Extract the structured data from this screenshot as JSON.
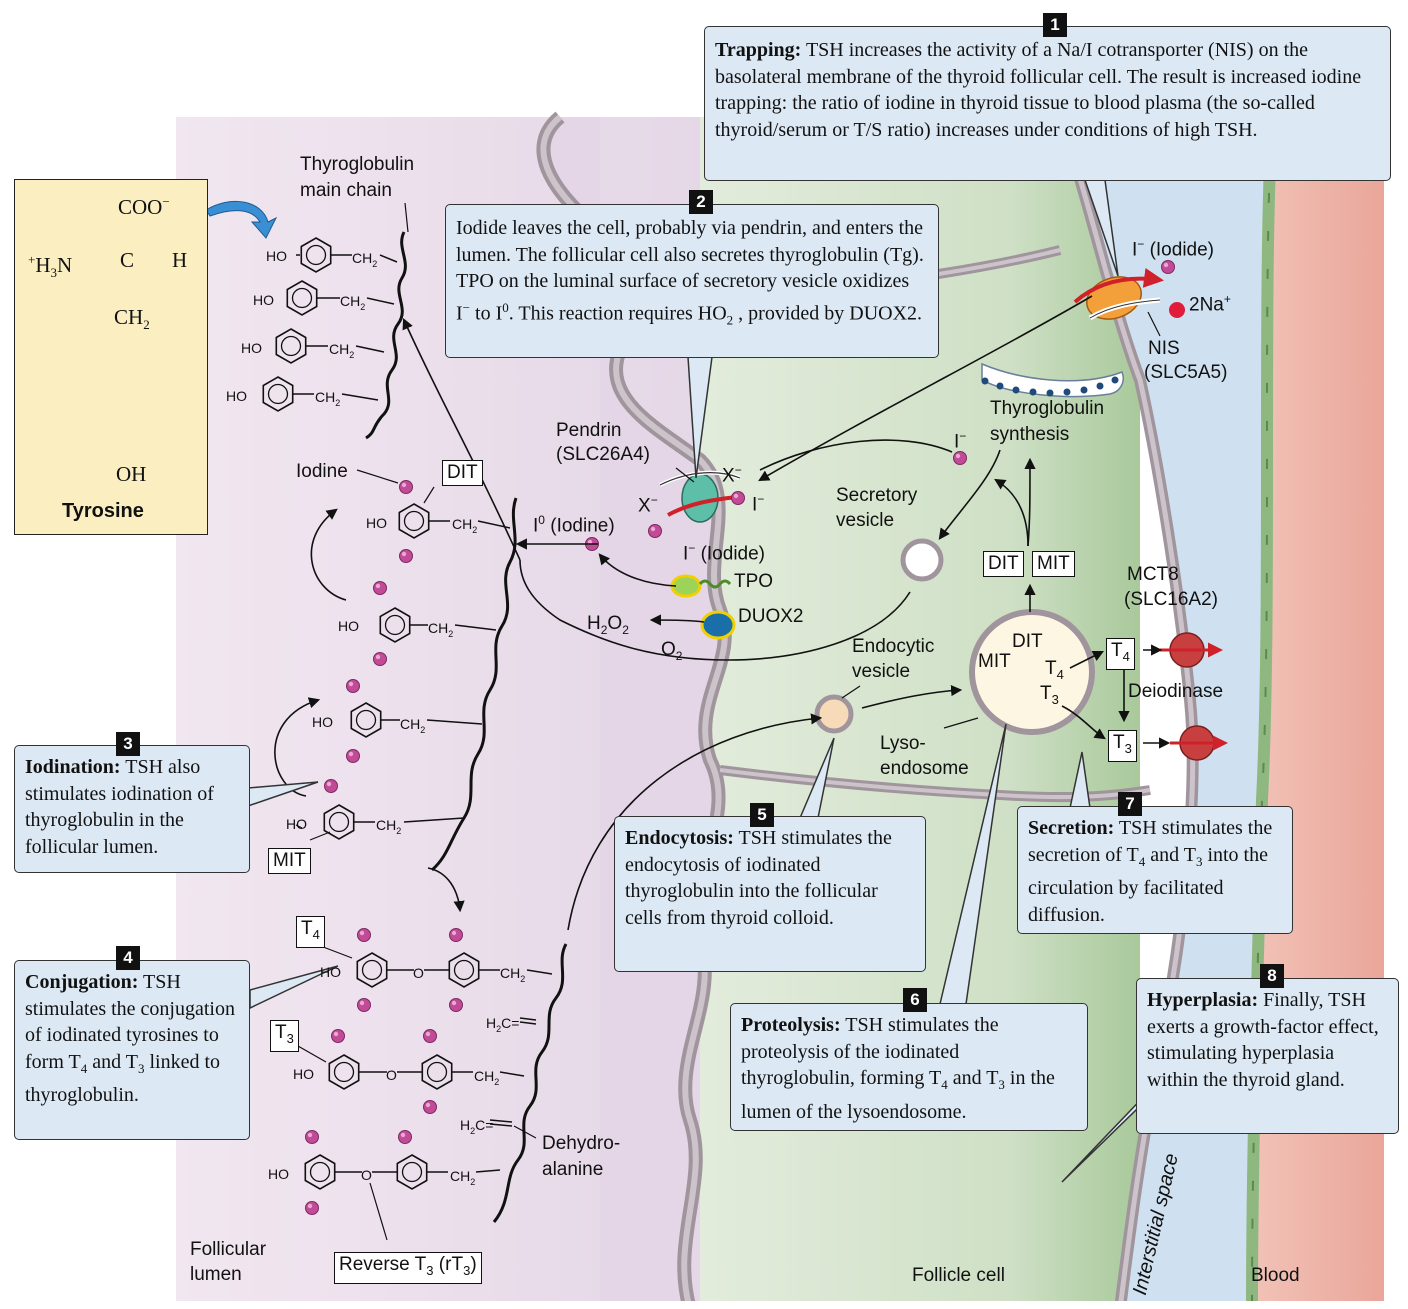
{
  "colors": {
    "lumen": "#ece0ec",
    "cell": "#dbe7d4",
    "cell_dark": "#8fb880",
    "interstitial": "#cfe1f0",
    "blood": "#eba89c",
    "membrane": "#a0959c",
    "box_fill": "#dce8f4",
    "tyr_fill": "#fbefc2",
    "iodine": "#c24b98",
    "sodium": "#e11b3a",
    "arrow_blue": "#3a8fd4"
  },
  "steps": {
    "s1": {
      "num": "1",
      "title": "Trapping:",
      "text": " TSH increases the activity of a Na/I cotransporter (NIS) on the basolateral membrane of the thyroid follicular cell. The result is increased iodine trapping: the ratio of iodine in thyroid tissue to blood plasma (the so-called thyroid/serum or T/S ratio) increases under conditions of high TSH."
    },
    "s2": {
      "num": "2",
      "text_a": "Iodide leaves the cell, probably via pendrin, and enters the lumen. The follicular cell also secretes thyroglobulin (Tg). TPO on the luminal surface of secretory vesicle oxidizes I",
      "text_b": " to I",
      "text_c": ". This reaction requires H",
      "text_d": "O",
      "text_e": " , provided by DUOX2."
    },
    "s3": {
      "num": "3",
      "title": "Iodination:",
      "text": " TSH also stimulates iodination of thyroglobulin in the follicular lumen."
    },
    "s4": {
      "num": "4",
      "title": "Conjugation:",
      "text_a": " TSH stimulates the conjugation of iodinated tyrosines to form T",
      "text_b": " and T",
      "text_c": " linked to thyroglobulin."
    },
    "s5": {
      "num": "5",
      "title": "Endocytosis:",
      "text": " TSH stimulates the endocytosis of iodinated thyroglobulin into the follicular cells from thyroid colloid."
    },
    "s6": {
      "num": "6",
      "title": "Proteolysis:",
      "text_a": " TSH stimulates the proteolysis of the iodinated thyroglobulin, forming T",
      "text_b": " and T",
      "text_c": " in the lumen of the lysoendosome."
    },
    "s7": {
      "num": "7",
      "title": "Secretion:",
      "text_a": " TSH stimulates the secretion of T",
      "text_b": " and T",
      "text_c": " into the circulation by facilitated diffusion."
    },
    "s8": {
      "num": "8",
      "title": "Hyperplasia:",
      "text": " Finally, TSH exerts a growth-factor effect, stimulating hyperplasia within the thyroid gland."
    }
  },
  "tyrosine": {
    "coo": "COO",
    "nh3": "H",
    "n": "N",
    "c": "C",
    "h": "H",
    "ch2": "CH",
    "oh": "OH",
    "name": "Tyrosine"
  },
  "labels": {
    "tg_main": "Thyroglobulin",
    "tg_main2": "main chain",
    "iodine": "Iodine",
    "dit": "DIT",
    "mit": "MIT",
    "t4": "T",
    "t3": "T",
    "four": "4",
    "three": "3",
    "i0": "I",
    "i0_b": " (Iodine)",
    "zero": "0",
    "iodide_lum": " (Iodide)",
    "iodide_top": " (Iodide)",
    "iminus": "I",
    "minus": "−",
    "pendrin": "Pendrin",
    "pendrin2": "(SLC26A4)",
    "x": "X",
    "tpo": "TPO",
    "duox2": "DUOX2",
    "h2o2_h": "H",
    "h2o2_2": "2",
    "h2o2_o": "O",
    "o2_o": "O",
    "nis": "NIS",
    "nis2": "(SLC5A5)",
    "na": "2Na",
    "plus": "+",
    "tg_syn": "Thyroglobulin",
    "tg_syn2": "synthesis",
    "secretory": "Secretory",
    "secretory2": "vesicle",
    "endocytic": "Endocytic",
    "endocytic2": "vesicle",
    "lyso": "Lyso-",
    "lyso2": "endosome",
    "mct8": "MCT8",
    "mct82": "(SLC16A2)",
    "deiod": "Deiodinase",
    "dehydro": "Dehydro-",
    "dehydro2": "alanine",
    "rt3": "Reverse T",
    "rt3b": " (rT",
    "rt3c": ")",
    "fol_lumen": "Follicular",
    "fol_lumen2": "lumen",
    "follicle_cell": "Follicle cell",
    "interstitial": "Interstitial space",
    "blood": "Blood",
    "ho": "HO",
    "ch2": "CH",
    "sub2": "2",
    "o": "O",
    "h2c": "H",
    "h2c2": "C="
  }
}
